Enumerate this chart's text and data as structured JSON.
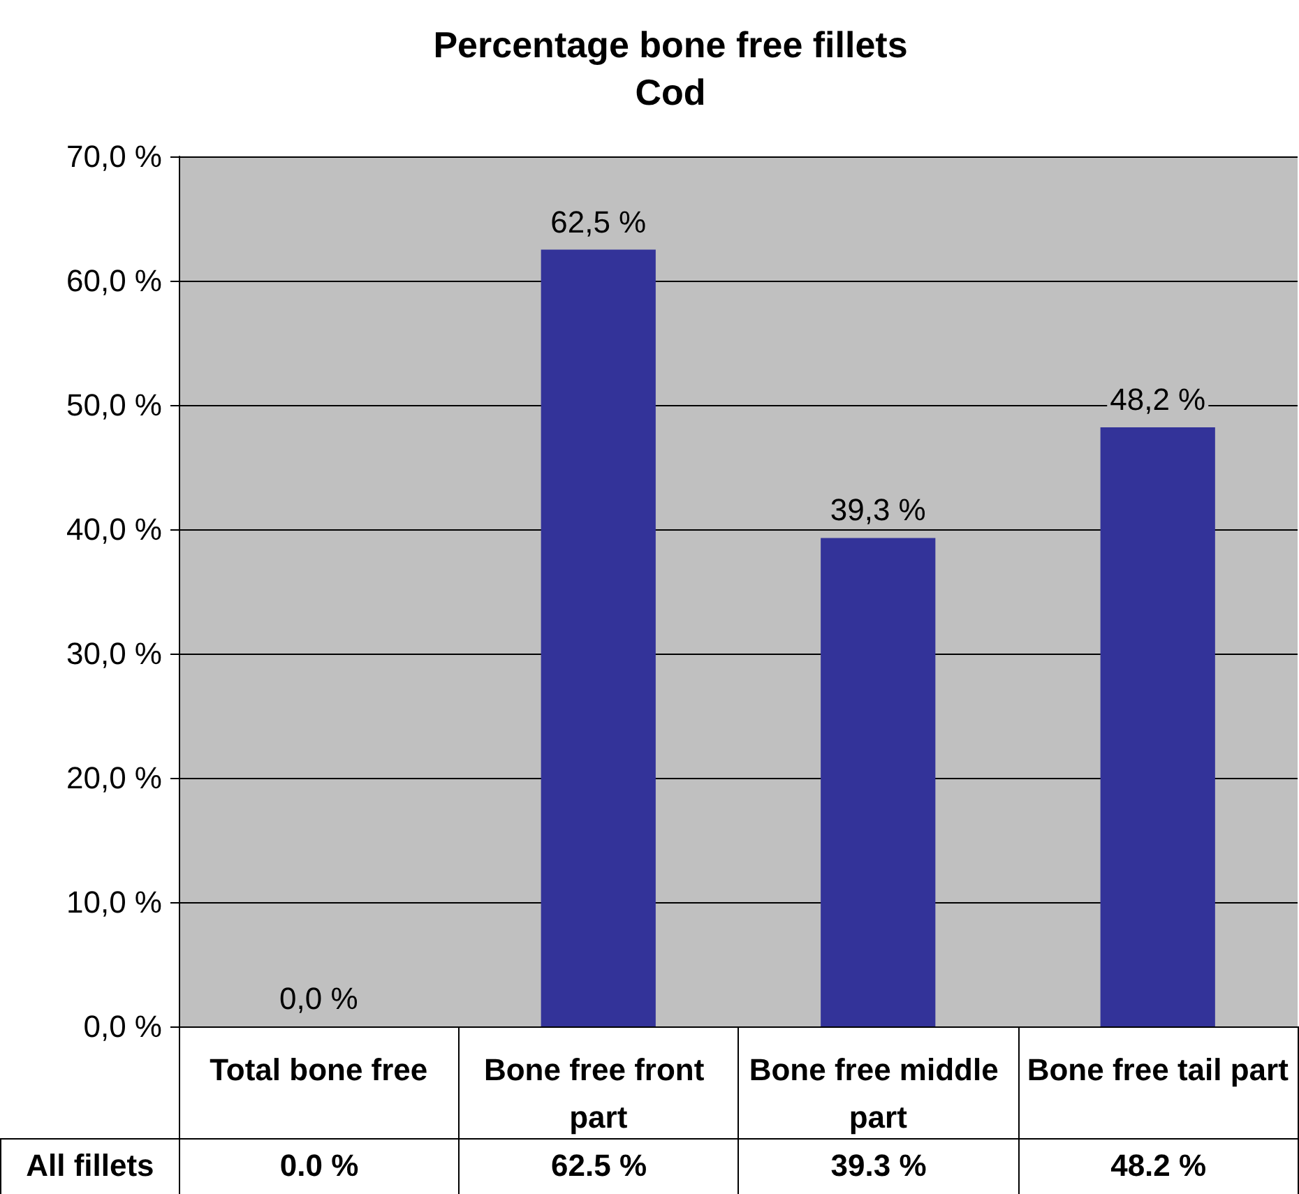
{
  "chart_data": {
    "type": "bar",
    "title": "Percentage bone free fillets",
    "subtitle": "Cod",
    "categories": [
      "Total bone free",
      "Bone free front part",
      "Bone free middle part",
      "Bone free tail part"
    ],
    "series": [
      {
        "name": "All fillets",
        "color": "#333399",
        "values": [
          0.0,
          62.5,
          39.3,
          48.2
        ],
        "value_labels": [
          "0,0 %",
          "62,5 %",
          "39,3 %",
          "48,2 %"
        ]
      }
    ],
    "annotations": [
      "0.0 %",
      "62.5 %",
      "39.3 %",
      "48.2 %"
    ],
    "ylim": [
      0,
      70
    ],
    "yticks": [
      {
        "value": 0,
        "label": "0,0 %"
      },
      {
        "value": 10,
        "label": "10,0 %"
      },
      {
        "value": 20,
        "label": "20,0 %"
      },
      {
        "value": 30,
        "label": "30,0 %"
      },
      {
        "value": 40,
        "label": "40,0 %"
      },
      {
        "value": 50,
        "label": "50,0 %"
      },
      {
        "value": 60,
        "label": "60,0 %"
      },
      {
        "value": 70,
        "label": "70,0 %"
      }
    ],
    "grid": "y",
    "legend": false
  }
}
